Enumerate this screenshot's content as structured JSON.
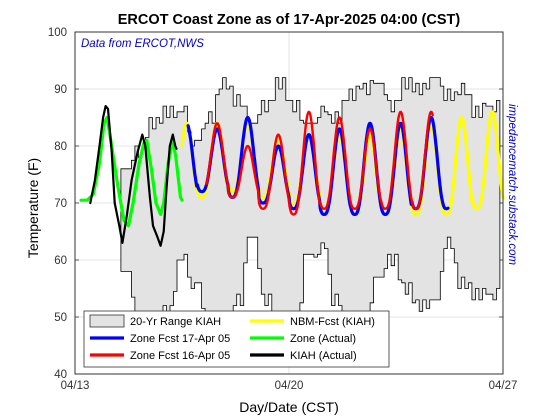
{
  "chart_data": {
    "type": "line",
    "title": "ERCOT Coast Zone as of 17-Apr-2025 04:00 (CST)",
    "annotation": "Data from ERCOT,NWS",
    "side_credit": "impedancematch.substack.com",
    "xlabel": "Day/Date (CST)",
    "ylabel": "Temperature (F)",
    "xlim_days": [
      0,
      14
    ],
    "x_ticks": [
      {
        "day": 0,
        "label": "04/13"
      },
      {
        "day": 7,
        "label": "04/20"
      },
      {
        "day": 14,
        "label": "04/27"
      }
    ],
    "ylim": [
      40,
      100
    ],
    "y_ticks": [
      40,
      50,
      60,
      70,
      80,
      90,
      100
    ],
    "grid": true,
    "legend_position": "bottom-left",
    "legend": {
      "range": "20-Yr Range KIAH",
      "nbm": "NBM-Fcst (KIAH)",
      "zone17": "Zone Fcst 17-Apr 05",
      "actual": "Zone (Actual)",
      "zone16": "Zone Fcst 16-Apr 05",
      "kiah": "KIAH (Actual)"
    },
    "colors": {
      "range_fill": "#e3e3e3",
      "range_edge": "#000000",
      "nbm": "#ffff00",
      "zone17": "#0000ff",
      "actual": "#00ff00",
      "zone16": "#ff0000",
      "kiah": "#000000",
      "annotation": "#0000c8"
    },
    "range_band": {
      "x_start": 1.5,
      "x_end": 13.9,
      "max": [
        76,
        79,
        84,
        86,
        86,
        81,
        85,
        91,
        88,
        84,
        87,
        91,
        87,
        84,
        86,
        85,
        89,
        90,
        91,
        87,
        91,
        90,
        92,
        89,
        90,
        86,
        87
      ],
      "min": [
        58,
        49,
        45,
        51,
        60,
        56,
        47,
        44,
        53,
        64,
        53,
        45,
        46,
        61,
        62,
        53,
        47,
        46,
        57,
        60,
        55,
        52,
        53,
        63,
        56,
        54,
        54
      ]
    },
    "series": [
      {
        "key": "nbm",
        "x_range": [
          3.5,
          14.0
        ],
        "min": [
          70,
          71,
          72,
          71,
          70,
          69,
          68,
          68,
          68,
          68,
          69,
          70
        ],
        "max": [
          84,
          84,
          84,
          81,
          82,
          82,
          82,
          83,
          84,
          85,
          86
        ]
      },
      {
        "key": "zone17",
        "x_range": [
          3.7,
          12.2
        ],
        "min": [
          71,
          72,
          71,
          70,
          69,
          68,
          68,
          68,
          69,
          69
        ],
        "max": [
          84,
          83,
          85,
          80,
          82,
          83,
          84,
          84,
          85
        ]
      },
      {
        "key": "zone16",
        "x_range": [
          4.3,
          11.7
        ],
        "min": [
          72,
          71,
          69,
          68,
          69,
          69,
          69,
          70
        ],
        "max": [
          84,
          80,
          82,
          86,
          85,
          83,
          86
        ]
      },
      {
        "key": "actual",
        "x_range": [
          0.2,
          3.5
        ],
        "points": [
          [
            0.2,
            70.5
          ],
          [
            0.4,
            70.5
          ],
          [
            0.6,
            71.5
          ],
          [
            0.8,
            77.0
          ],
          [
            0.95,
            84.0
          ],
          [
            1.05,
            85.0
          ],
          [
            1.2,
            80.0
          ],
          [
            1.4,
            73.0
          ],
          [
            1.6,
            67.0
          ],
          [
            1.75,
            66.0
          ],
          [
            1.9,
            70.0
          ],
          [
            2.1,
            77.0
          ],
          [
            2.25,
            80.5
          ],
          [
            2.35,
            81.0
          ],
          [
            2.5,
            76.0
          ],
          [
            2.65,
            70.0
          ],
          [
            2.8,
            68.0
          ],
          [
            2.9,
            70.0
          ],
          [
            3.05,
            77.0
          ],
          [
            3.2,
            81.0
          ],
          [
            3.3,
            78.0
          ],
          [
            3.45,
            71.0
          ],
          [
            3.5,
            70.5
          ]
        ]
      },
      {
        "key": "kiah",
        "x_range": [
          0.5,
          3.3
        ],
        "points": [
          [
            0.5,
            70.0
          ],
          [
            0.65,
            74.0
          ],
          [
            0.8,
            80.0
          ],
          [
            0.92,
            85.0
          ],
          [
            1.0,
            87.0
          ],
          [
            1.08,
            86.5
          ],
          [
            1.2,
            79.0
          ],
          [
            1.3,
            70.0
          ],
          [
            1.45,
            66.0
          ],
          [
            1.55,
            63.0
          ],
          [
            1.7,
            68.0
          ],
          [
            1.85,
            74.0
          ],
          [
            2.05,
            79.0
          ],
          [
            2.2,
            82.0
          ],
          [
            2.3,
            80.0
          ],
          [
            2.45,
            71.0
          ],
          [
            2.55,
            66.0
          ],
          [
            2.7,
            64.0
          ],
          [
            2.8,
            62.5
          ],
          [
            2.9,
            65.0
          ],
          [
            3.0,
            73.0
          ],
          [
            3.1,
            80.0
          ],
          [
            3.2,
            82.0
          ],
          [
            3.28,
            80.0
          ],
          [
            3.32,
            79.5
          ]
        ]
      }
    ]
  }
}
